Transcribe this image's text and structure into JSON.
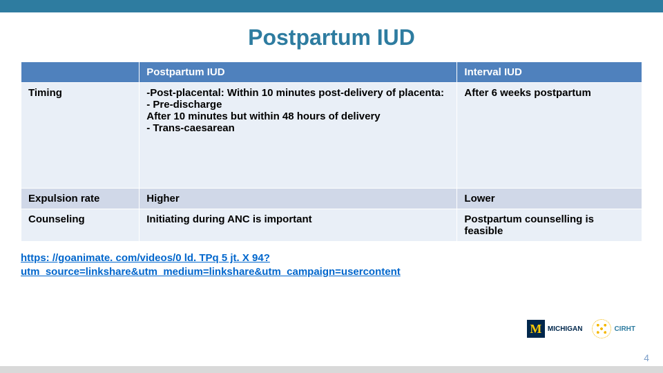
{
  "colors": {
    "topbar": "#2e7ca0",
    "title": "#2e7ca0",
    "header_bg": "#4f81bd",
    "header_text": "#ffffff",
    "row_light": "#e9eff7",
    "row_band": "#d0d8e8",
    "cell_text": "#000000",
    "link": "#0066cc",
    "pagenum": "#7c9fc9",
    "bottom_band": "#d9d9d9",
    "m_block_bg": "#00274c",
    "cirht_text": "#2e7ca0"
  },
  "title": "Postpartum IUD",
  "table": {
    "headers": {
      "col1": "",
      "col2": "Postpartum IUD",
      "col3": "Interval IUD"
    },
    "rows": [
      {
        "label": "Timing",
        "pp": "-Post-placental: Within 10 minutes post-delivery of placenta:\n- Pre-discharge\nAfter 10 minutes but within 48 hours of delivery\n-  Trans-caesarean",
        "int": "After 6 weeks postpartum",
        "bg": "row_light"
      },
      {
        "label": "Expulsion rate",
        "pp": "Higher",
        "int": "Lower",
        "bg": "row_band"
      },
      {
        "label": "Counseling",
        "pp": "Initiating during ANC is important",
        "int": "Postpartum counselling is feasible",
        "bg": "row_light"
      }
    ]
  },
  "link_text": "https: //goanimate. com/videos/0 ld. TPq 5 jt. X 94? utm_source=linkshare&utm_medium=linkshare&utm_campaign=usercontent",
  "logos": {
    "michigan": "MICHIGAN",
    "cirht": "CIRHT"
  },
  "page_number": "4"
}
